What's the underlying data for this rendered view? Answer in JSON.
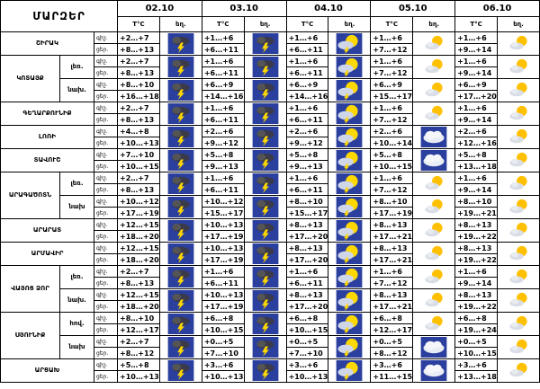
{
  "header": {
    "title": "ՄԱՐԶԵՐ",
    "dates": [
      "02.10",
      "03.10",
      "04.10",
      "05.10",
      "06.10"
    ],
    "temp_label": "T°C",
    "icon_label": "եղ."
  },
  "period_labels": [
    "գիշ.",
    "ցեր."
  ],
  "regions": [
    {
      "name": "ՇԻՐԱԿ",
      "rows": [
        {
          "forecast": [
            [
              "+2…+7",
              "+8…+13"
            ],
            [
              "+1…+6",
              "+6…+11"
            ],
            [
              "+1…+6",
              "+6…+11"
            ],
            [
              "+1…+6",
              "+7…+12"
            ],
            [
              "+1…+6",
              "+9…+14"
            ]
          ]
        }
      ]
    },
    {
      "name": "ԿՈՏԱՅՔ",
      "rows": [
        {
          "label": "լեռ.",
          "forecast": [
            [
              "+2…+7",
              "+8…+13"
            ],
            [
              "+1…+6",
              "+6…+11"
            ],
            [
              "+1…+6",
              "+6…+11"
            ],
            [
              "+1…+6",
              "+7…+12"
            ],
            [
              "+1…+6",
              "+9…+14"
            ]
          ]
        },
        {
          "label": "նախ.",
          "forecast": [
            [
              "+8…+10",
              "+16…+18"
            ],
            [
              "+6…+9",
              "+14…+16"
            ],
            [
              "+6…+9",
              "+14…+16"
            ],
            [
              "+6…+9",
              "+15…+17"
            ],
            [
              "+6…+9",
              "+17…+20"
            ]
          ]
        }
      ]
    },
    {
      "name": "ԳԵՂԱՐՔՈՒՆԻՔ",
      "rows": [
        {
          "forecast": [
            [
              "+2…+7",
              "+8…+13"
            ],
            [
              "+1…+6",
              "+6…+11"
            ],
            [
              "+1…+6",
              "+6…+11"
            ],
            [
              "+1…+6",
              "+7…+12"
            ],
            [
              "+1…+6",
              "+9…+14"
            ]
          ]
        }
      ]
    },
    {
      "name": "ԼՈՌԻ",
      "rows": [
        {
          "forecast": [
            [
              "+4…+8",
              "+10…+13"
            ],
            [
              "+2…+6",
              "+9…+12"
            ],
            [
              "+2…+6",
              "+9…+12"
            ],
            [
              "+2…+6",
              "+10…+14"
            ],
            [
              "+2…+6",
              "+12…+16"
            ]
          ]
        }
      ]
    },
    {
      "name": "ՏԱՎՈՒՇ",
      "rows": [
        {
          "forecast": [
            [
              "+7…+10",
              "+10…+15"
            ],
            [
              "+5…+8",
              "+9…+13"
            ],
            [
              "+5…+8",
              "+9…+13"
            ],
            [
              "+5…+8",
              "+10…+15"
            ],
            [
              "+5…+8",
              "+13…+18"
            ]
          ]
        }
      ]
    },
    {
      "name": "ԱՐԱԳԱԾՈՏՆ",
      "rows": [
        {
          "label": "լեռ.",
          "forecast": [
            [
              "+2…+7",
              "+8…+13"
            ],
            [
              "+1…+6",
              "+6…+11"
            ],
            [
              "+1…+6",
              "+6…+11"
            ],
            [
              "+1…+6",
              "+7…+12"
            ],
            [
              "+1…+6",
              "+9…+14"
            ]
          ]
        },
        {
          "label": "նախ",
          "forecast": [
            [
              "+10…+12",
              "+17…+19"
            ],
            [
              "+10…+12",
              "+15…+17"
            ],
            [
              "+8…+10",
              "+15…+17"
            ],
            [
              "+8…+10",
              "+17…+19"
            ],
            [
              "+8…+10",
              "+19…+21"
            ]
          ]
        }
      ]
    },
    {
      "name": "ԱՐԱՐԱՏ",
      "rows": [
        {
          "forecast": [
            [
              "+12…+15",
              "+18…+20"
            ],
            [
              "+10…+13",
              "+17…+19"
            ],
            [
              "+8…+13",
              "+17…+20"
            ],
            [
              "+8…+13",
              "+17…+21"
            ],
            [
              "+8…+13",
              "+19…+22"
            ]
          ]
        }
      ]
    },
    {
      "name": "ԱՐՄԱՎԻՐ",
      "rows": [
        {
          "forecast": [
            [
              "+12…+15",
              "+18…+20"
            ],
            [
              "+10…+13",
              "+17…+19"
            ],
            [
              "+8…+13",
              "+17…+20"
            ],
            [
              "+8…+13",
              "+17…+21"
            ],
            [
              "+8…+13",
              "+19…+22"
            ]
          ]
        }
      ]
    },
    {
      "name": "ՎԱՅՈՑ ՁՈՐ",
      "rows": [
        {
          "label": "լեռ.",
          "forecast": [
            [
              "+2…+7",
              "+8…+13"
            ],
            [
              "+1…+6",
              "+6…+11"
            ],
            [
              "+1…+6",
              "+6…+11"
            ],
            [
              "+1…+6",
              "+7…+12"
            ],
            [
              "+1…+6",
              "+9…+14"
            ]
          ]
        },
        {
          "label": "նախ.",
          "forecast": [
            [
              "+12…+15",
              "+18…+20"
            ],
            [
              "+10…+13",
              "+17…+19"
            ],
            [
              "+8…+13",
              "+17…+20"
            ],
            [
              "+8…+13",
              "+17…+21"
            ],
            [
              "+8…+13",
              "+19…+22"
            ]
          ]
        }
      ]
    },
    {
      "name": "ՍՅՈՒՆԻՔ",
      "rows": [
        {
          "label": "հով.",
          "forecast": [
            [
              "+8…+10",
              "+12…+17"
            ],
            [
              "+6…+8",
              "+10…+15"
            ],
            [
              "+6…+8",
              "+10…+15"
            ],
            [
              "+6…+8",
              "+12…+17"
            ],
            [
              "+6…+8",
              "+19…+24"
            ]
          ]
        },
        {
          "label": "նախ",
          "forecast": [
            [
              "+2…+7",
              "+8…+12"
            ],
            [
              "+0…+5",
              "+7…+10"
            ],
            [
              "+0…+5",
              "+7…+10"
            ],
            [
              "+0…+5",
              "+8…+12"
            ],
            [
              "+0…+5",
              "+10…+15"
            ]
          ]
        }
      ]
    },
    {
      "name": "ԱՐՑԱԽ",
      "rows": [
        {
          "forecast": [
            [
              "+5…+8",
              "+10…+13"
            ],
            [
              "+3…+6",
              "+10…+13"
            ],
            [
              "+3…+6",
              "+10…+13"
            ],
            [
              "+3…+6",
              "+11…+15"
            ],
            [
              "+3…+6",
              "+13…+18"
            ]
          ]
        }
      ]
    }
  ]
}
